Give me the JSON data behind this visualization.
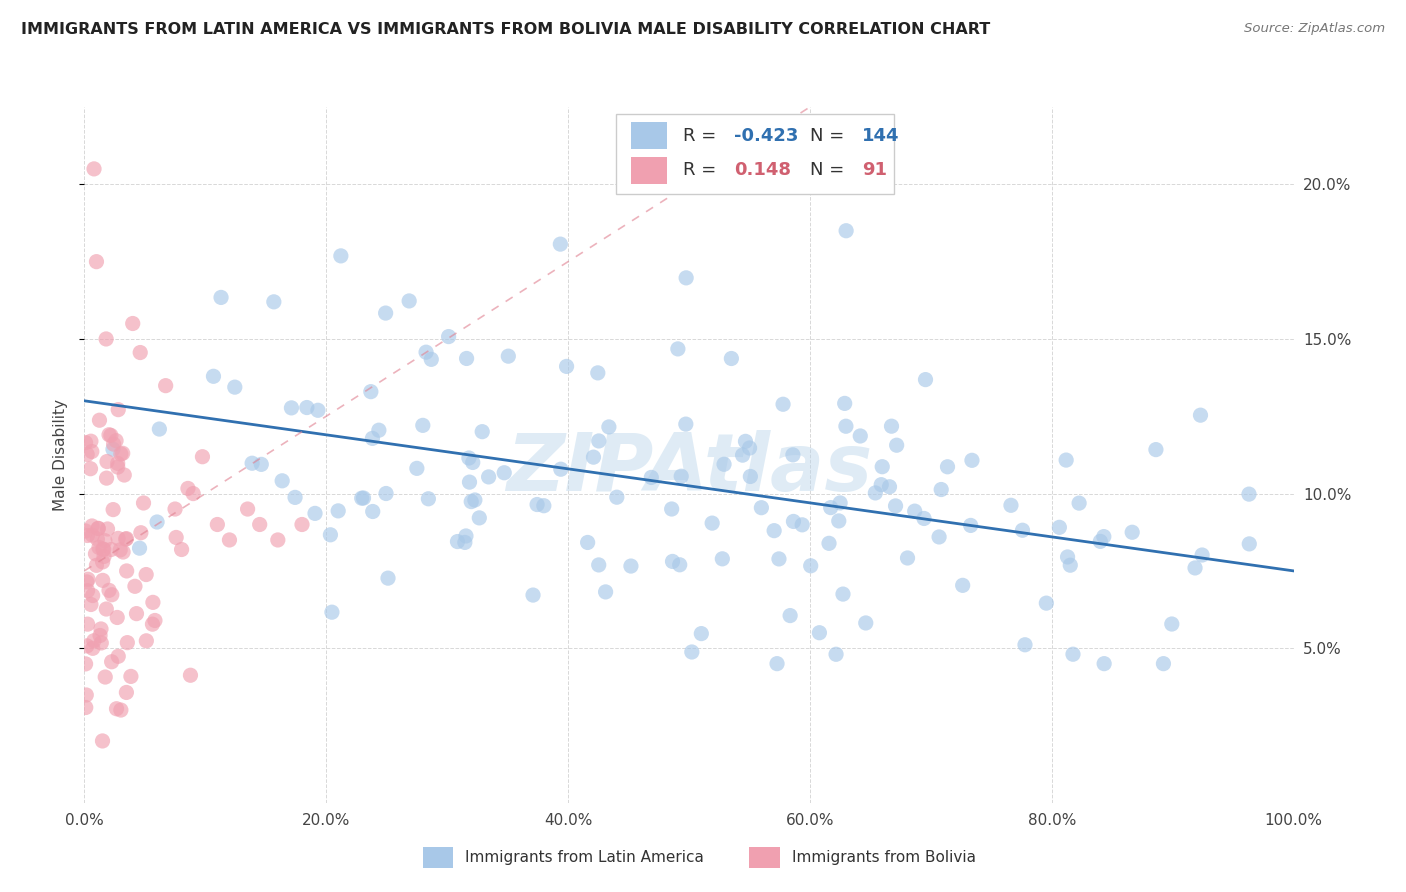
{
  "title": "IMMIGRANTS FROM LATIN AMERICA VS IMMIGRANTS FROM BOLIVIA MALE DISABILITY CORRELATION CHART",
  "source": "Source: ZipAtlas.com",
  "ylabel": "Male Disability",
  "legend_blue_label": "Immigrants from Latin America",
  "legend_pink_label": "Immigrants from Bolivia",
  "blue_color": "#a8c8e8",
  "pink_color": "#f0a0b0",
  "trend_blue_color": "#3070b0",
  "trend_pink_color": "#e08090",
  "background_color": "#ffffff",
  "watermark": "ZIPAtlas",
  "R_blue": -0.423,
  "N_blue": 144,
  "R_pink": 0.148,
  "N_pink": 91,
  "blue_R_color": "#3070b0",
  "pink_R_color": "#d06070",
  "legend_text_color": "#333333"
}
